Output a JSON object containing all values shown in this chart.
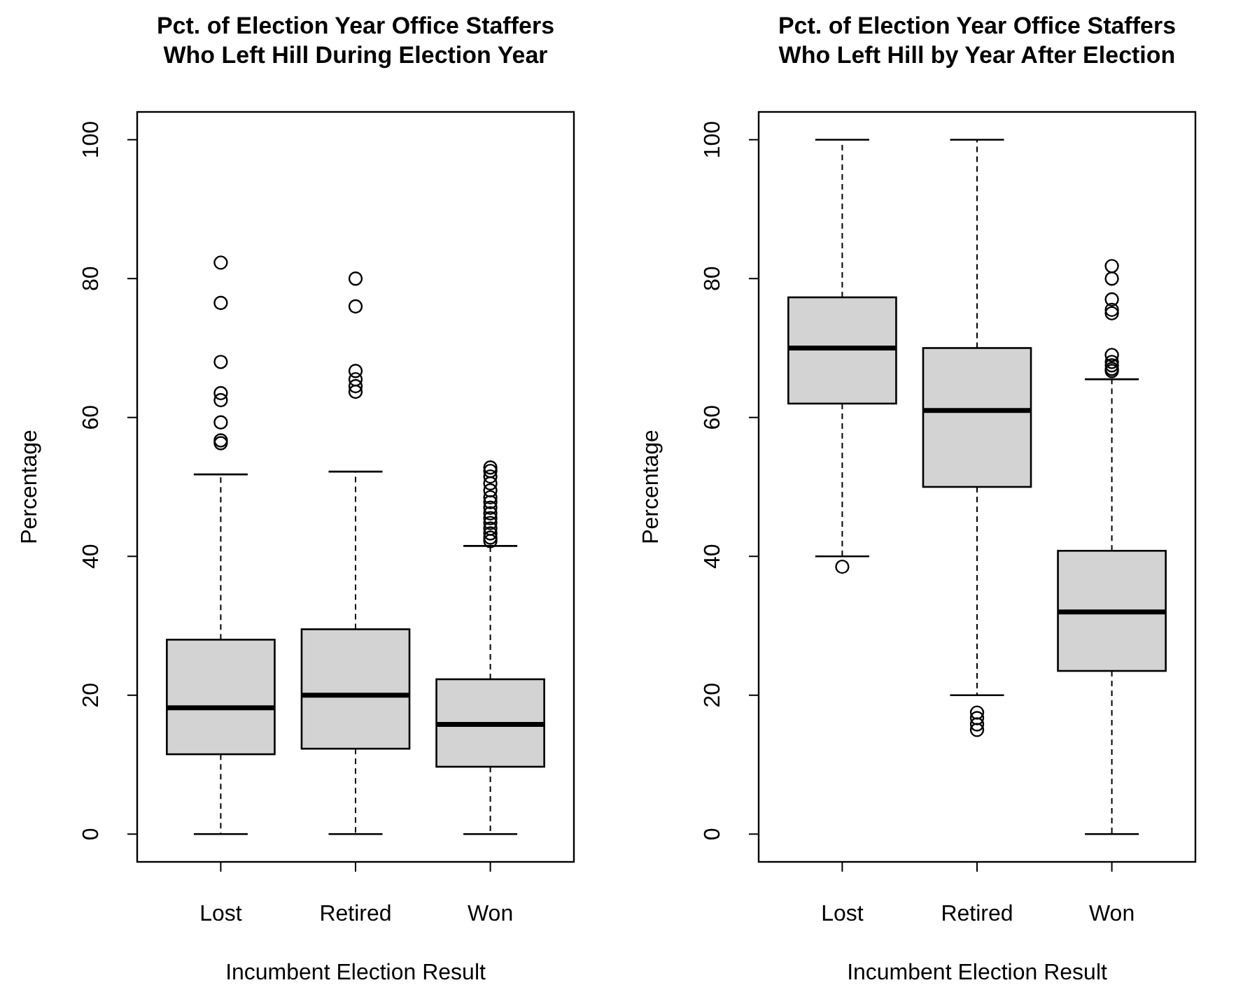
{
  "chart_data": [
    {
      "type": "box",
      "title": "Pct. of Election Year Office Staffers\nWho Left Hill During Election Year",
      "xlabel": "Incumbent Election Result",
      "ylabel": "Percentage",
      "categories": [
        "Lost",
        "Retired",
        "Won"
      ],
      "ylim": [
        -4,
        104
      ],
      "yticks": [
        0,
        20,
        40,
        60,
        80,
        100
      ],
      "grid": false,
      "color": "#d3d3d3",
      "boxes": [
        {
          "low": 0,
          "q1": 11.5,
          "median": 18.2,
          "q3": 28,
          "high": 51.8,
          "outliers": [
            82.3,
            76.5,
            68,
            63.5,
            62.5,
            59.3,
            56.7,
            56.3
          ]
        },
        {
          "low": 0,
          "q1": 12.3,
          "median": 20,
          "q3": 29.5,
          "high": 52.2,
          "outliers": [
            80,
            76,
            66.7,
            65.5,
            64.5,
            63.7
          ]
        },
        {
          "low": 0,
          "q1": 9.7,
          "median": 15.8,
          "q3": 22.3,
          "high": 41.5,
          "outliers": [
            52.8,
            52.3,
            51.5,
            50.5,
            49.5,
            48.5,
            47.8,
            47,
            46.2,
            45.5,
            44.8,
            44,
            43.3,
            42.7,
            42.2
          ]
        }
      ]
    },
    {
      "type": "box",
      "title": "Pct. of Election Year Office Staffers\nWho Left Hill by Year After Election",
      "xlabel": "Incumbent Election Result",
      "ylabel": "Percentage",
      "categories": [
        "Lost",
        "Retired",
        "Won"
      ],
      "ylim": [
        -4,
        104
      ],
      "yticks": [
        0,
        20,
        40,
        60,
        80,
        100
      ],
      "grid": false,
      "color": "#d3d3d3",
      "boxes": [
        {
          "low": 40,
          "q1": 62,
          "median": 70,
          "q3": 77.3,
          "high": 100,
          "outliers": [
            38.5
          ]
        },
        {
          "low": 20,
          "q1": 50,
          "median": 61,
          "q3": 70,
          "high": 100,
          "outliers": [
            17.5,
            16.7,
            15.8,
            15
          ]
        },
        {
          "low": 0,
          "q1": 23.5,
          "median": 32,
          "q3": 40.8,
          "high": 65.5,
          "outliers": [
            81.8,
            80,
            77,
            75.5,
            75,
            69,
            68,
            67.5,
            67,
            66.7
          ]
        }
      ]
    }
  ]
}
